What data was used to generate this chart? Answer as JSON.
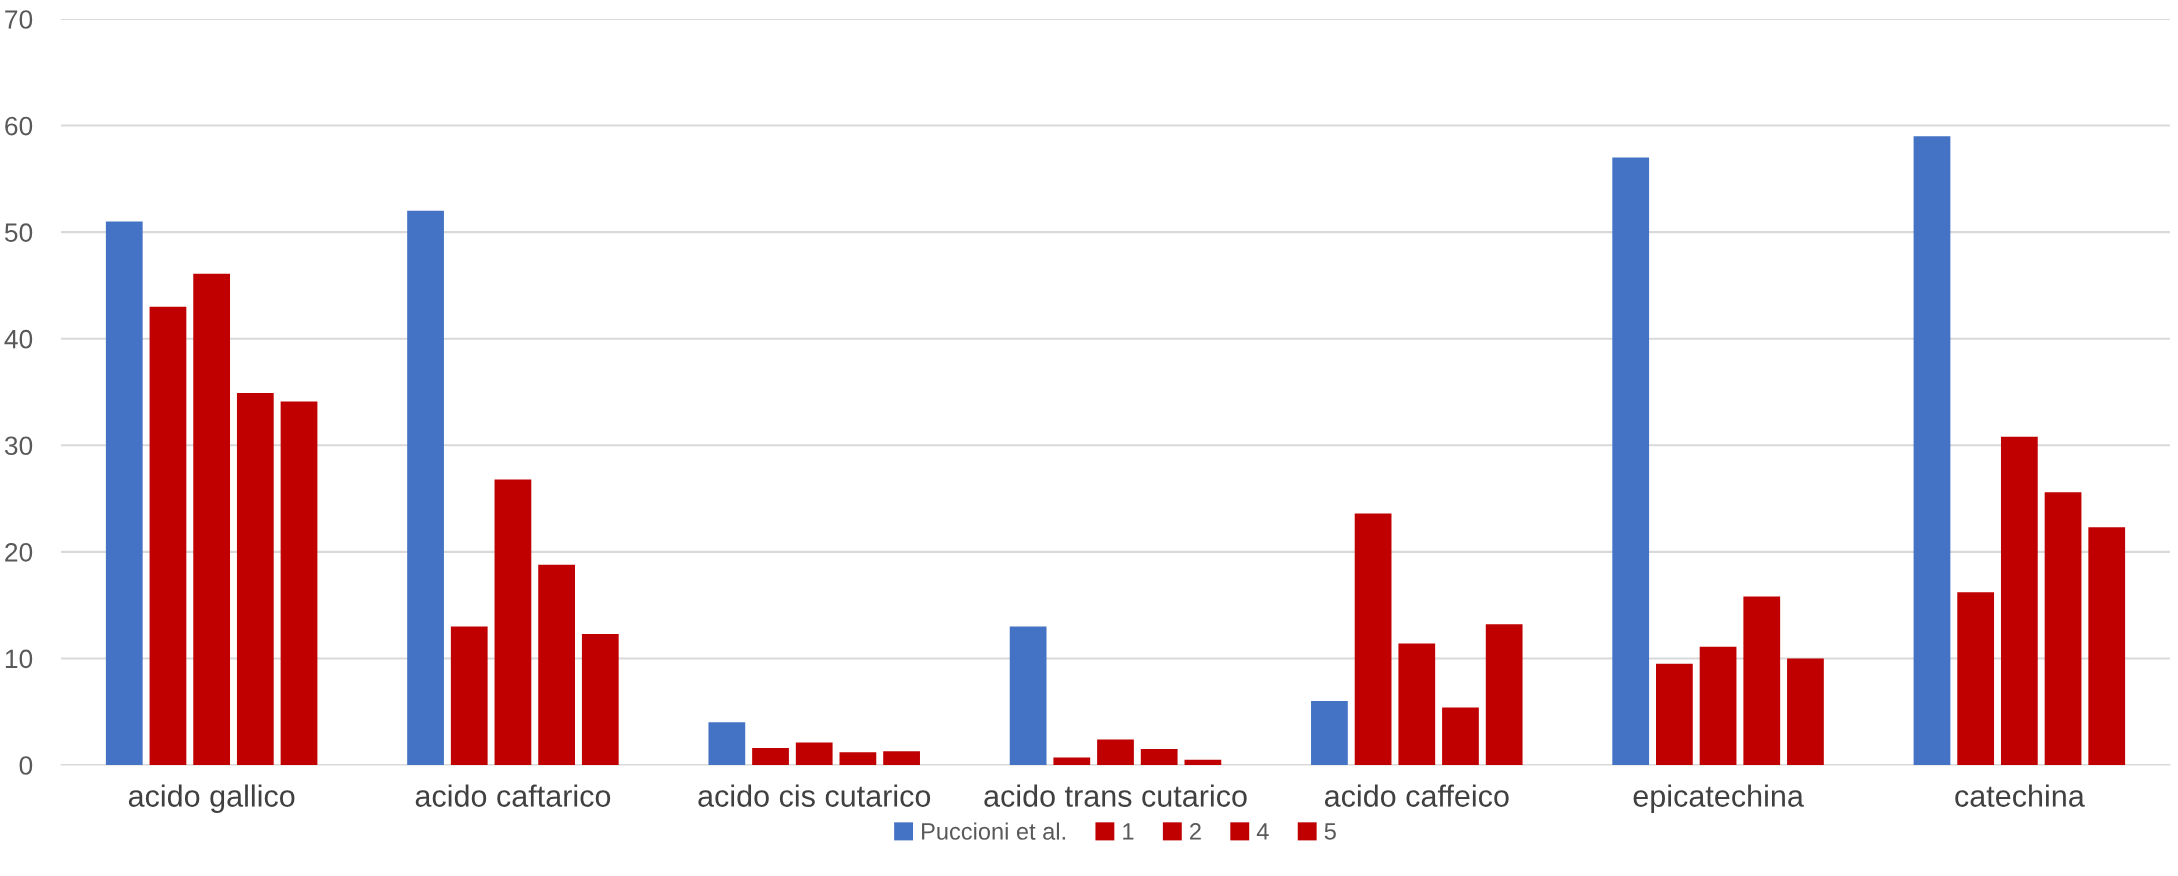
{
  "chart_data": {
    "type": "bar",
    "categories": [
      "acido gallico",
      "acido caftarico",
      "acido cis cutarico",
      "acido trans cutarico",
      "acido caffeico",
      "epicatechina",
      "catechina"
    ],
    "series": [
      {
        "name": "Puccioni et al.",
        "color": "#4472c4",
        "values": [
          51,
          52,
          4,
          13,
          6,
          57,
          59
        ]
      },
      {
        "name": "1",
        "color": "#c00000",
        "values": [
          43,
          13,
          1.6,
          0.7,
          23.6,
          9.5,
          16.2
        ]
      },
      {
        "name": "2",
        "color": "#c00000",
        "values": [
          46.1,
          26.8,
          2.1,
          2.4,
          11.4,
          11.1,
          30.8
        ]
      },
      {
        "name": "4",
        "color": "#c00000",
        "values": [
          34.9,
          18.8,
          1.2,
          1.5,
          5.4,
          15.8,
          25.6
        ]
      },
      {
        "name": "5",
        "color": "#c00000",
        "values": [
          34.1,
          12.3,
          1.3,
          0.5,
          13.2,
          10.0,
          22.3
        ]
      }
    ],
    "ylim": [
      0,
      70
    ],
    "yticks": [
      0,
      10,
      20,
      30,
      40,
      50,
      60,
      70
    ],
    "grid": "y",
    "legend": "bottom"
  }
}
